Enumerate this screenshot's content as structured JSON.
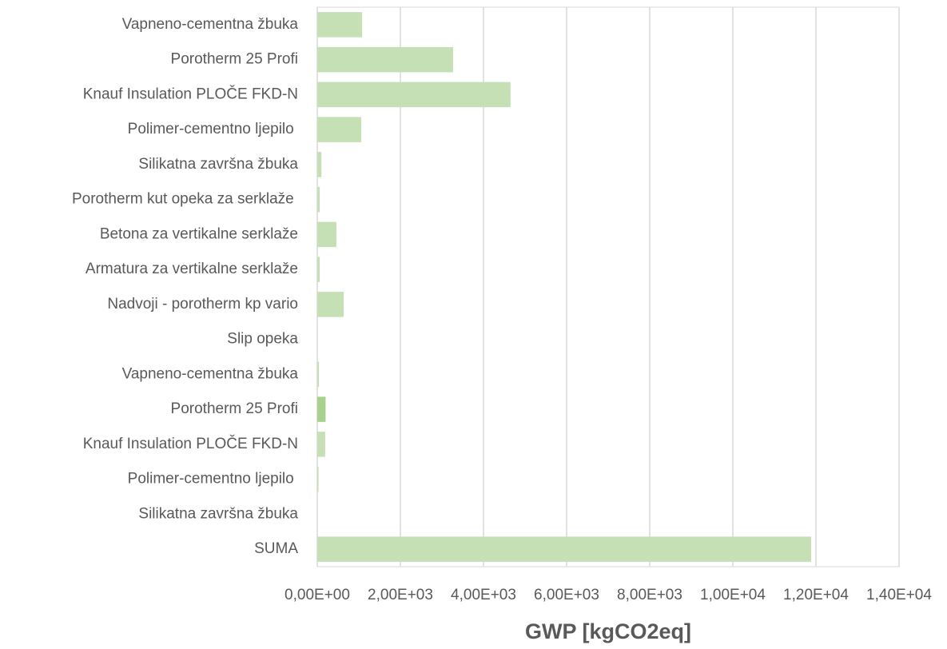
{
  "chart_data": {
    "type": "barh",
    "categories": [
      "Vapneno-cementna žbuka",
      "Porotherm 25 Profi",
      "Knauf Insulation PLOČE FKD-N",
      "Polimer-cementno ljepilo ",
      "Silikatna završna žbuka",
      "Porotherm kut opeka za serklaže ",
      "Betona za vertikalne serklaže",
      "Armatura za vertikalne serklaže",
      "Nadvoji - porotherm kp vario",
      "Slip opeka",
      "Vapneno-cementna žbuka",
      "Porotherm 25 Profi",
      "Knauf Insulation PLOČE FKD-N",
      "Polimer-cementno ljepilo ",
      "Silikatna završna žbuka",
      "SUMA"
    ],
    "values": [
      1080,
      3270,
      4650,
      1060,
      100,
      60,
      460,
      60,
      635,
      5,
      40,
      200,
      190,
      30,
      5,
      11885
    ],
    "colors": [
      "#c5e0b4",
      "#c5e0b4",
      "#c5e0b4",
      "#c5e0b4",
      "#c5e0b4",
      "#c5e0b4",
      "#c5e0b4",
      "#c5e0b4",
      "#c5e0b4",
      "#c5e0b4",
      "#c5e0b4",
      "#a9d18e",
      "#c5e0b4",
      "#c5e0b4",
      "#c5e0b4",
      "#c5e0b4"
    ],
    "xlabel": "GWP [kgCO2eq]",
    "xlim": [
      0,
      14000
    ],
    "xticks": [
      {
        "value": 0,
        "label": "0,00E+00"
      },
      {
        "value": 2000,
        "label": "2,00E+03"
      },
      {
        "value": 4000,
        "label": "4,00E+03"
      },
      {
        "value": 6000,
        "label": "6,00E+03"
      },
      {
        "value": 8000,
        "label": "8,00E+03"
      },
      {
        "value": 10000,
        "label": "1,00E+04"
      },
      {
        "value": 12000,
        "label": "1,20E+04"
      },
      {
        "value": 14000,
        "label": "1,40E+04"
      }
    ],
    "grid": true
  }
}
